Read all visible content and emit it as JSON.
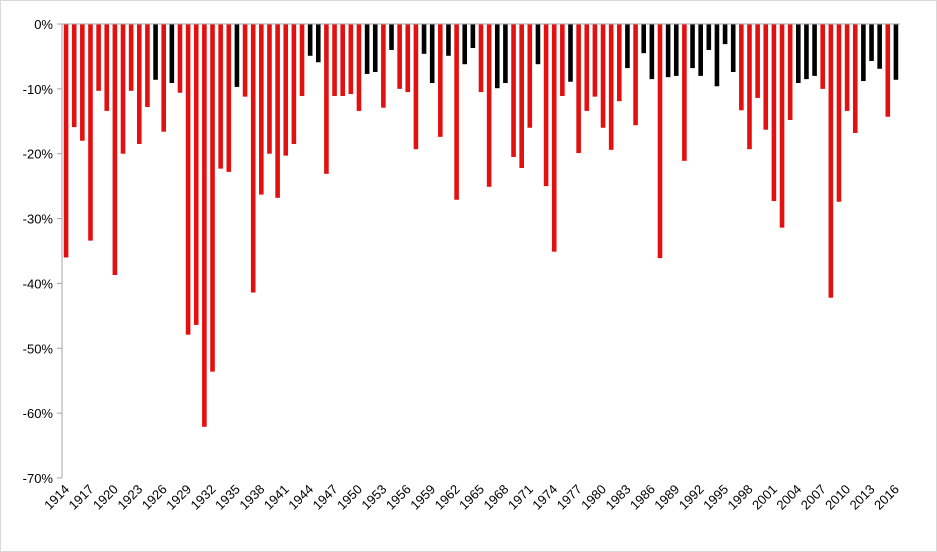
{
  "chart_data": {
    "type": "bar",
    "categories": [
      "1914",
      null,
      null,
      "1917",
      null,
      null,
      "1920",
      null,
      null,
      "1923",
      null,
      null,
      "1926",
      null,
      null,
      "1929",
      null,
      null,
      "1932",
      null,
      null,
      "1935",
      null,
      null,
      "1938",
      null,
      null,
      "1941",
      null,
      null,
      "1944",
      null,
      null,
      "1947",
      null,
      null,
      "1950",
      null,
      null,
      "1953",
      null,
      null,
      "1956",
      null,
      null,
      "1959",
      null,
      null,
      "1962",
      null,
      null,
      "1965",
      null,
      null,
      "1968",
      null,
      null,
      "1971",
      null,
      null,
      "1974",
      null,
      null,
      "1977",
      null,
      null,
      "1980",
      null,
      null,
      "1983",
      null,
      null,
      "1986",
      null,
      null,
      "1989",
      null,
      null,
      "1992",
      null,
      null,
      "1995",
      null,
      null,
      "1998",
      null,
      null,
      "2001",
      null,
      null,
      "2004",
      null,
      null,
      "2007",
      null,
      null,
      "2010",
      null,
      null,
      "2013",
      null,
      null,
      "2016"
    ],
    "values": [
      -36,
      -15.9,
      -18,
      -33.4,
      -10.3,
      -13.4,
      -38.7,
      -20,
      -10.3,
      -18.5,
      -12.8,
      -8.6,
      -16.6,
      -9.1,
      -10.6,
      -47.9,
      -46.4,
      -62.1,
      -53.6,
      -22.3,
      -22.8,
      -9.7,
      -11.2,
      -41.4,
      -26.3,
      -20,
      -26.8,
      -20.3,
      -18.5,
      -11.1,
      -4.9,
      -5.9,
      -23.1,
      -11.1,
      -11.1,
      -10.8,
      -13.4,
      -7.7,
      -7.4,
      -12.9,
      -4,
      -10,
      -10.5,
      -19.3,
      -4.6,
      -9.1,
      -17.4,
      -4.9,
      -27.1,
      -6.2,
      -3.7,
      -10.5,
      -25.1,
      -9.9,
      -9.1,
      -20.5,
      -22.2,
      -16,
      -6.2,
      -25,
      -35.1,
      -11.1,
      -8.9,
      -19.9,
      -13.4,
      -11.2,
      -16,
      -19.4,
      -11.9,
      -6.8,
      -15.6,
      -4.5,
      -8.5,
      -36.1,
      -8.2,
      -8,
      -21.1,
      -6.8,
      -8,
      -4,
      -9.6,
      -3.1,
      -7.4,
      -13.3,
      -19.3,
      -11.4,
      -16.3,
      -27.3,
      -31.4,
      -14.8,
      -9.1,
      -8.5,
      -8,
      -10,
      -42.2,
      -27.4,
      -13.4,
      -16.8,
      -8.8,
      -5.7,
      -6.9,
      -14.3,
      -8.6
    ],
    "colors": [
      "#e31010",
      "#e31010",
      "#e31010",
      "#e31010",
      "#e31010",
      "#e31010",
      "#e31010",
      "#e31010",
      "#e31010",
      "#e31010",
      "#e31010",
      "#000000",
      "#e31010",
      "#000000",
      "#e31010",
      "#e31010",
      "#e31010",
      "#e31010",
      "#e31010",
      "#e31010",
      "#e31010",
      "#000000",
      "#e31010",
      "#e31010",
      "#e31010",
      "#e31010",
      "#e31010",
      "#e31010",
      "#e31010",
      "#e31010",
      "#000000",
      "#000000",
      "#e31010",
      "#e31010",
      "#e31010",
      "#e31010",
      "#e31010",
      "#000000",
      "#000000",
      "#e31010",
      "#000000",
      "#e31010",
      "#e31010",
      "#e31010",
      "#000000",
      "#000000",
      "#e31010",
      "#000000",
      "#e31010",
      "#000000",
      "#000000",
      "#e31010",
      "#e31010",
      "#000000",
      "#000000",
      "#e31010",
      "#e31010",
      "#e31010",
      "#000000",
      "#e31010",
      "#e31010",
      "#e31010",
      "#000000",
      "#e31010",
      "#e31010",
      "#e31010",
      "#e31010",
      "#e31010",
      "#e31010",
      "#000000",
      "#e31010",
      "#000000",
      "#000000",
      "#e31010",
      "#000000",
      "#000000",
      "#e31010",
      "#000000",
      "#000000",
      "#000000",
      "#000000",
      "#000000",
      "#000000",
      "#e31010",
      "#e31010",
      "#e31010",
      "#e31010",
      "#e31010",
      "#e31010",
      "#e31010",
      "#000000",
      "#000000",
      "#000000",
      "#e31010",
      "#e31010",
      "#e31010",
      "#e31010",
      "#e31010",
      "#000000",
      "#000000",
      "#000000",
      "#e31010",
      "#000000"
    ],
    "ylim": [
      -70,
      0
    ],
    "yticks": [
      {
        "value": 0,
        "label": "0%"
      },
      {
        "value": -10,
        "label": "-10%"
      },
      {
        "value": -20,
        "label": "-20%"
      },
      {
        "value": -30,
        "label": "-30%"
      },
      {
        "value": -40,
        "label": "-40%"
      },
      {
        "value": -50,
        "label": "-50%"
      },
      {
        "value": -60,
        "label": "-60%"
      },
      {
        "value": -70,
        "label": "-70%"
      }
    ]
  }
}
